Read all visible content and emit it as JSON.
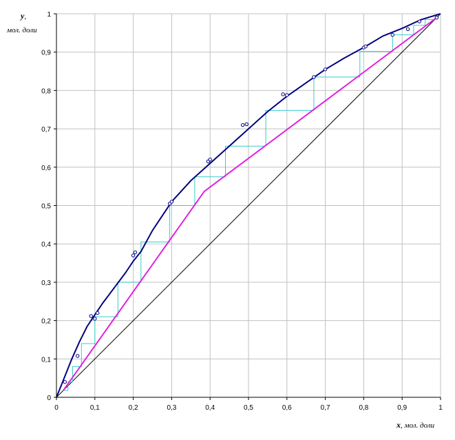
{
  "chart_data": {
    "type": "line",
    "title": "",
    "xlabel": {
      "var": "x",
      "unit": ", мол. доли"
    },
    "ylabel": {
      "var": "y",
      "sep": ",",
      "unit": "мол. доли"
    },
    "xlim": [
      0,
      1
    ],
    "ylim": [
      0,
      1
    ],
    "xticks": [
      "0",
      "0,1",
      "0,2",
      "0,3",
      "0,4",
      "0,5",
      "0,6",
      "0,7",
      "0,8",
      "0,9",
      "1"
    ],
    "yticks": [
      "0",
      "0,1",
      "0,2",
      "0,3",
      "0,4",
      "0,5",
      "0,6",
      "0,7",
      "0,8",
      "0,9",
      "1"
    ],
    "grid": true,
    "legend": "none",
    "colors": {
      "equilibrium": "#000080",
      "operating": "#e020e0",
      "steps": "#33cccc",
      "diagonal": "#000000",
      "grid": "#c0c0c0",
      "points": "#000080"
    },
    "series": [
      {
        "role": "equilibrium-curve",
        "x": [
          0,
          0.02,
          0.04,
          0.06,
          0.08,
          0.1,
          0.12,
          0.15,
          0.18,
          0.2,
          0.22,
          0.25,
          0.3,
          0.35,
          0.4,
          0.45,
          0.5,
          0.55,
          0.6,
          0.65,
          0.7,
          0.75,
          0.8,
          0.85,
          0.9,
          0.95,
          1.0
        ],
        "y": [
          0,
          0.05,
          0.1,
          0.145,
          0.185,
          0.215,
          0.245,
          0.285,
          0.325,
          0.355,
          0.38,
          0.435,
          0.51,
          0.565,
          0.61,
          0.655,
          0.7,
          0.745,
          0.785,
          0.82,
          0.855,
          0.885,
          0.912,
          0.942,
          0.962,
          0.985,
          1.0
        ]
      },
      {
        "role": "experimental-points",
        "x": [
          0.022,
          0.055,
          0.09,
          0.1,
          0.107,
          0.2,
          0.205,
          0.295,
          0.3,
          0.395,
          0.4,
          0.485,
          0.495,
          0.59,
          0.6,
          0.67,
          0.7,
          0.8,
          0.805,
          0.875,
          0.915,
          0.945,
          0.99
        ],
        "y": [
          0.04,
          0.108,
          0.212,
          0.205,
          0.22,
          0.37,
          0.378,
          0.505,
          0.51,
          0.615,
          0.62,
          0.71,
          0.712,
          0.79,
          0.788,
          0.835,
          0.855,
          0.912,
          0.915,
          0.945,
          0.96,
          0.98,
          0.99
        ]
      },
      {
        "role": "operating-line",
        "x": [
          0.018,
          0.385,
          0.99
        ],
        "y": [
          0.018,
          0.537,
          0.99
        ]
      },
      {
        "role": "diagonal",
        "x": [
          0,
          1
        ],
        "y": [
          0,
          1
        ]
      },
      {
        "role": "stages",
        "x": [
          0.018,
          0.03,
          0.03,
          0.042,
          0.042,
          0.065,
          0.065,
          0.1,
          0.1,
          0.16,
          0.16,
          0.22,
          0.22,
          0.295,
          0.295,
          0.36,
          0.36,
          0.44,
          0.44,
          0.545,
          0.545,
          0.67,
          0.67,
          0.79,
          0.79,
          0.875,
          0.875,
          0.93,
          0.93,
          0.96,
          0.96,
          0.985
        ],
        "y": [
          0.018,
          0.018,
          0.04,
          0.04,
          0.08,
          0.08,
          0.14,
          0.14,
          0.21,
          0.21,
          0.3,
          0.3,
          0.405,
          0.405,
          0.5,
          0.5,
          0.575,
          0.575,
          0.655,
          0.655,
          0.748,
          0.748,
          0.835,
          0.835,
          0.902,
          0.902,
          0.945,
          0.945,
          0.97,
          0.97,
          0.985,
          0.985
        ]
      }
    ]
  }
}
